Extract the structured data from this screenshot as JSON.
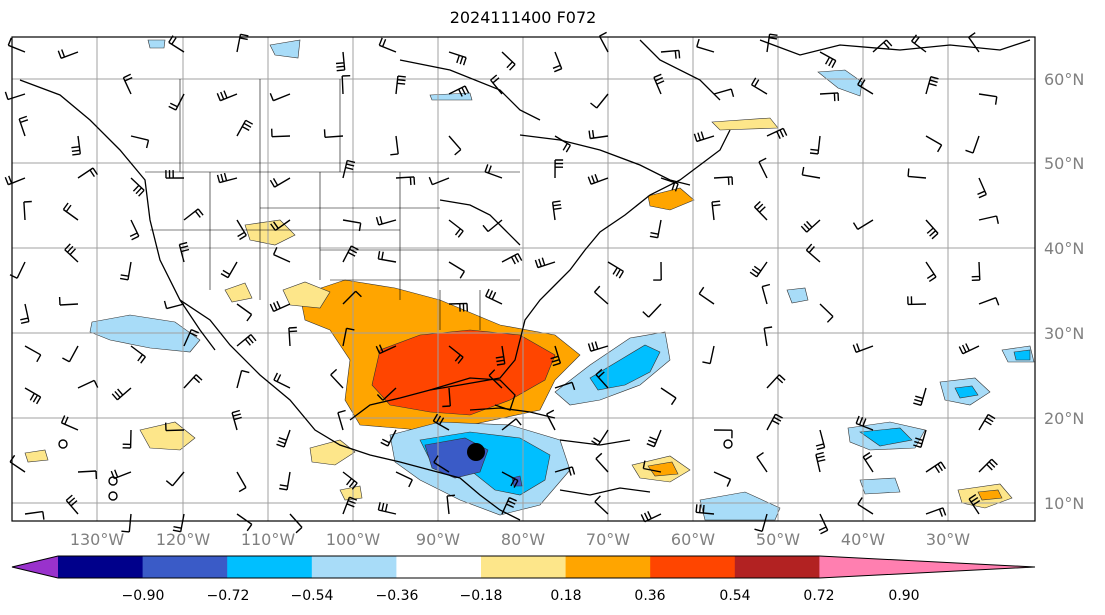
{
  "title": "2024111400 F072",
  "map": {
    "lon_labels": [
      "130°W",
      "120°W",
      "110°W",
      "100°W",
      "90°W",
      "80°W",
      "70°W",
      "60°W",
      "50°W",
      "40°W",
      "30°W"
    ],
    "lat_labels": [
      "60°N",
      "50°N",
      "40°N",
      "30°N",
      "20°N",
      "10°N"
    ],
    "grid": true,
    "label_color": "#808080"
  },
  "colorbar": {
    "ticks": [
      "−0.90",
      "−0.72",
      "−0.54",
      "−0.36",
      "−0.18",
      "0.18",
      "0.36",
      "0.54",
      "0.72",
      "0.90"
    ],
    "colors": [
      "#9932cc",
      "#00008b",
      "#3a5bc7",
      "#00bfff",
      "#a8dcf8",
      "#ffffff",
      "#fde68a",
      "#ffa500",
      "#ff4500",
      "#b22222",
      "#ff7fb0"
    ],
    "extend": "both"
  }
}
